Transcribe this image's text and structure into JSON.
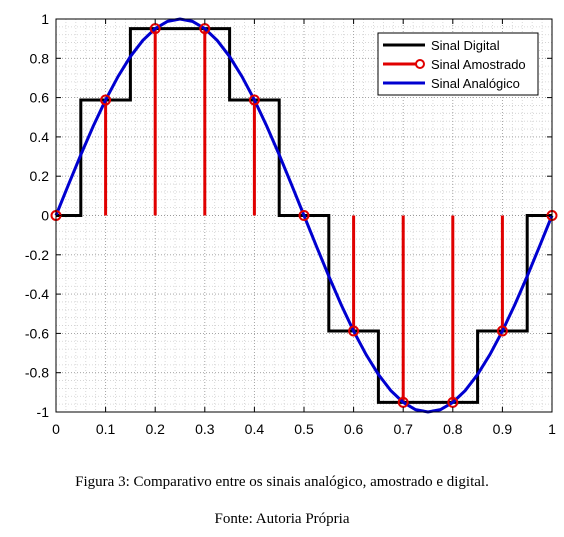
{
  "chart_data": {
    "type": "line",
    "xlim": [
      0,
      1
    ],
    "ylim": [
      -1,
      1
    ],
    "grid": true,
    "legend_placement": "top-right",
    "x_ticks": [
      "0",
      "0.1",
      "0.2",
      "0.3",
      "0.4",
      "0.5",
      "0.6",
      "0.7",
      "0.8",
      "0.9",
      "1"
    ],
    "y_ticks": [
      "1",
      "0.8",
      "0.6",
      "0.4",
      "0.2",
      "0",
      "-0.2",
      "-0.4",
      "-0.6",
      "-0.8",
      "-1"
    ],
    "series": [
      {
        "name": "Sinal Digital",
        "style": "step",
        "color": "#000000",
        "x": [
          0,
          0.05,
          0.05,
          0.15,
          0.15,
          0.35,
          0.35,
          0.45,
          0.45,
          0.55,
          0.55,
          0.65,
          0.65,
          0.85,
          0.85,
          0.95,
          0.95,
          1
        ],
        "y": [
          0,
          0,
          0.588,
          0.588,
          0.951,
          0.951,
          0.588,
          0.588,
          0,
          0,
          -0.588,
          -0.588,
          -0.951,
          -0.951,
          -0.588,
          -0.588,
          0,
          0
        ]
      },
      {
        "name": "Sinal Amostrado",
        "style": "stem",
        "color": "#e00000",
        "x": [
          0,
          0.1,
          0.2,
          0.3,
          0.4,
          0.5,
          0.6,
          0.7,
          0.8,
          0.9,
          1
        ],
        "y": [
          0,
          0.588,
          0.951,
          0.951,
          0.588,
          0,
          -0.588,
          -0.951,
          -0.951,
          -0.588,
          0
        ]
      },
      {
        "name": "Sinal Analógico",
        "style": "line",
        "color": "#0000d0",
        "x": [
          0,
          0.025,
          0.05,
          0.075,
          0.1,
          0.125,
          0.15,
          0.175,
          0.2,
          0.225,
          0.25,
          0.275,
          0.3,
          0.325,
          0.35,
          0.375,
          0.4,
          0.425,
          0.45,
          0.475,
          0.5,
          0.525,
          0.55,
          0.575,
          0.6,
          0.625,
          0.65,
          0.675,
          0.7,
          0.725,
          0.75,
          0.775,
          0.8,
          0.825,
          0.85,
          0.875,
          0.9,
          0.925,
          0.95,
          0.975,
          1
        ],
        "y": [
          0,
          0.156,
          0.309,
          0.454,
          0.588,
          0.707,
          0.809,
          0.891,
          0.951,
          0.988,
          1,
          0.988,
          0.951,
          0.891,
          0.809,
          0.707,
          0.588,
          0.454,
          0.309,
          0.156,
          0,
          -0.156,
          -0.309,
          -0.454,
          -0.588,
          -0.707,
          -0.809,
          -0.891,
          -0.951,
          -0.988,
          -1,
          -0.988,
          -0.951,
          -0.891,
          -0.809,
          -0.707,
          -0.588,
          -0.454,
          -0.309,
          -0.156,
          0
        ]
      }
    ]
  },
  "caption": {
    "figure": "Figura 3: Comparativo entre os sinais analógico, amostrado e digital.",
    "source": "Fonte: Autoria Própria"
  }
}
